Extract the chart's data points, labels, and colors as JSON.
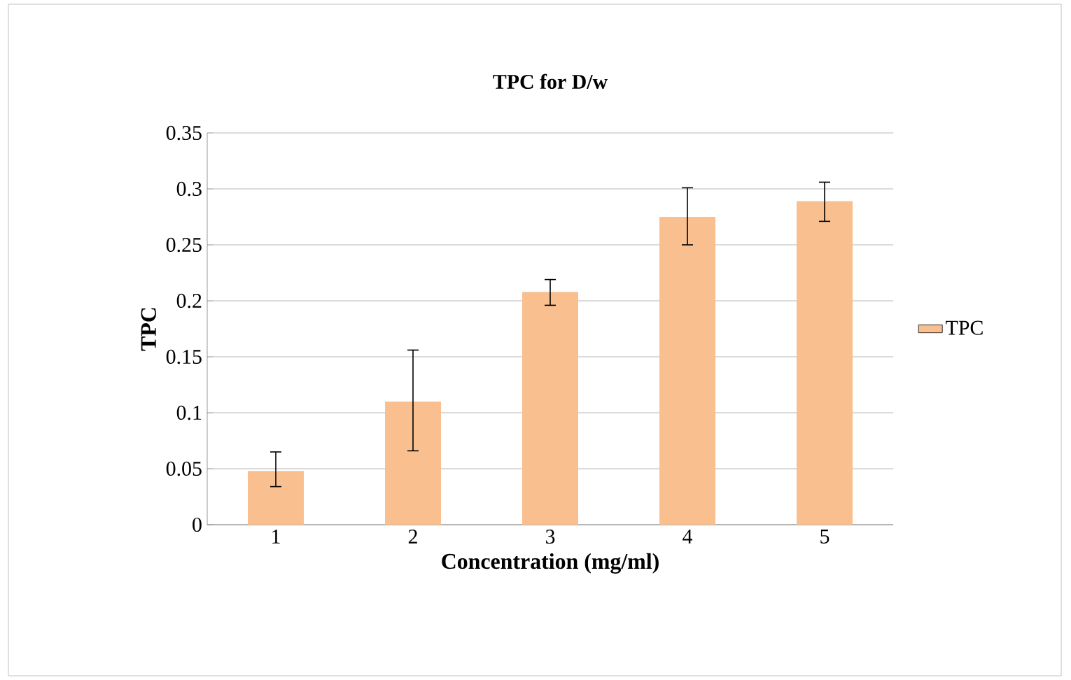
{
  "chart_data": {
    "type": "bar",
    "title": "TPC for D/w",
    "xlabel": "Concentration (mg/ml)",
    "ylabel": "TPC",
    "categories": [
      "1",
      "2",
      "3",
      "4",
      "5"
    ],
    "series": [
      {
        "name": "TPC",
        "color": "#f9bf8f",
        "values": [
          0.048,
          0.11,
          0.208,
          0.275,
          0.289
        ],
        "errors": [
          [
            0.034,
            0.065
          ],
          [
            0.066,
            0.156
          ],
          [
            0.196,
            0.219
          ],
          [
            0.25,
            0.301
          ],
          [
            0.271,
            0.306
          ]
        ]
      }
    ],
    "ylim": [
      0,
      0.35
    ],
    "yticks": [
      0,
      0.05,
      0.1,
      0.15,
      0.2,
      0.25,
      0.3,
      0.35
    ],
    "grid": "y",
    "legend": "right"
  }
}
